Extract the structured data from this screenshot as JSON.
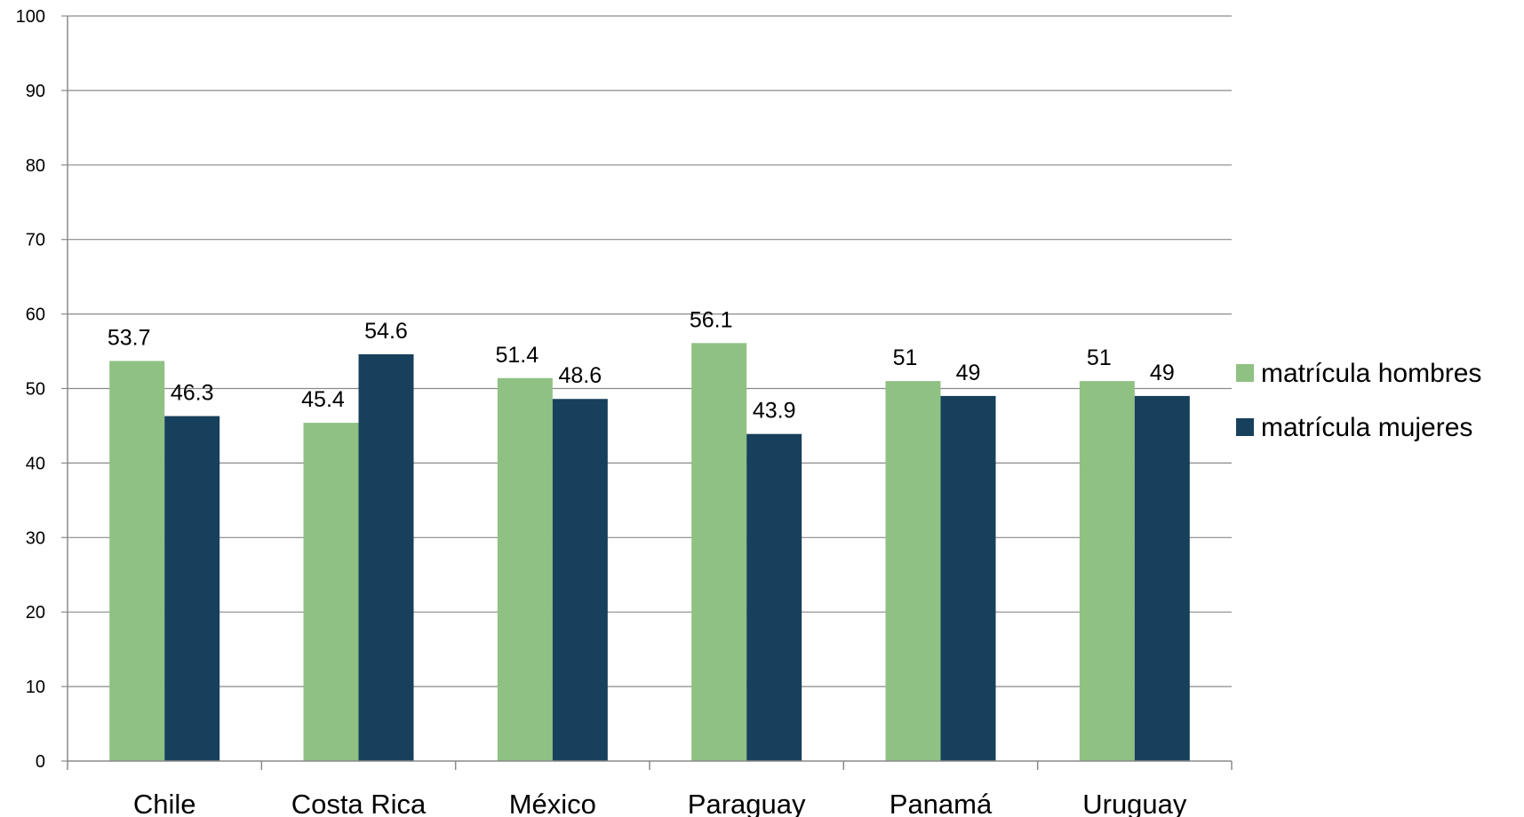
{
  "chart_data": {
    "type": "bar",
    "title": "",
    "xlabel": "",
    "ylabel": "",
    "categories": [
      "Chile",
      "Costa Rica",
      "México",
      "Paraguay",
      "Panamá",
      "Uruguay"
    ],
    "series": [
      {
        "name": "matrícula hombres",
        "color": "#8fc183",
        "values": [
          53.7,
          45.4,
          51.4,
          56.1,
          51,
          51
        ]
      },
      {
        "name": "matrícula mujeres",
        "color": "#17405c",
        "values": [
          46.3,
          54.6,
          48.6,
          43.9,
          49,
          49
        ]
      }
    ],
    "ylim": [
      0,
      100
    ],
    "yticks": [
      "0",
      "10",
      "20",
      "30",
      "40",
      "50",
      "60",
      "70",
      "80",
      "90",
      "100"
    ],
    "grid": true,
    "legend_position": "right",
    "data_labels": true
  }
}
